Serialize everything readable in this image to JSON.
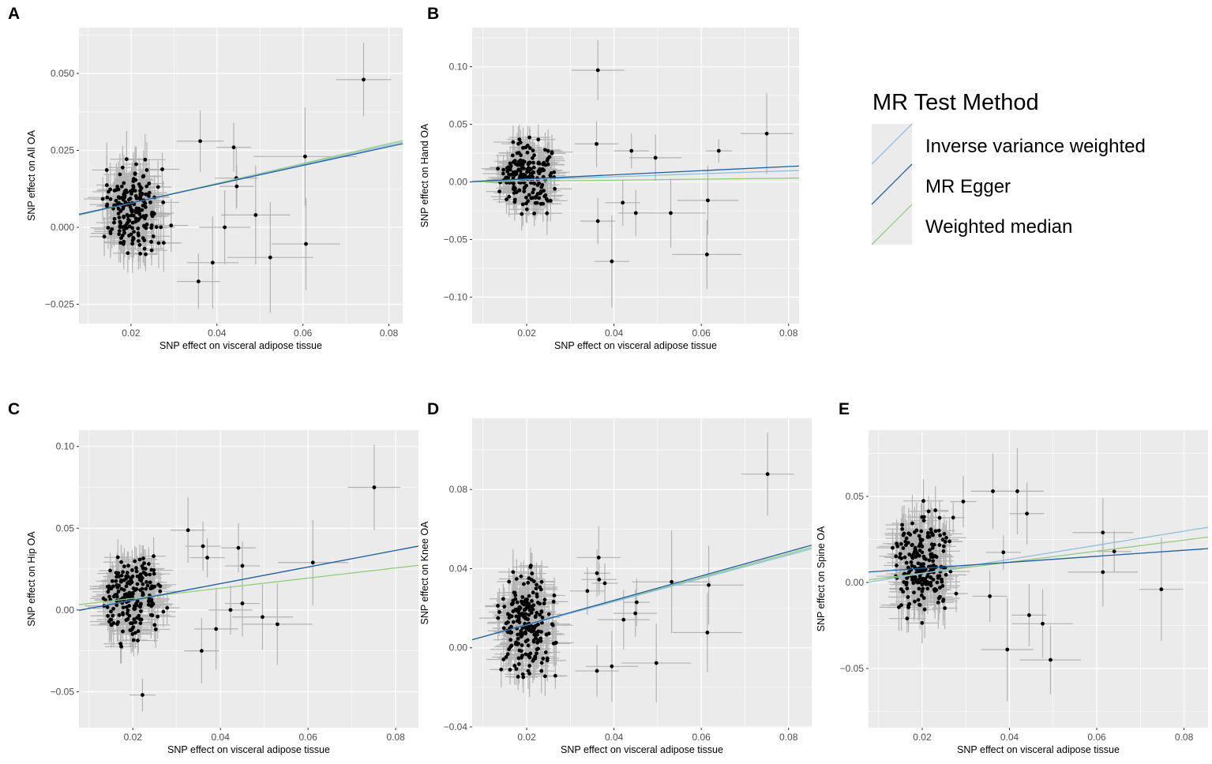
{
  "colors": {
    "panel_bg": "#ebebeb",
    "grid": "#ffffff",
    "errorbar": "#b3b3b3",
    "point": "#000000",
    "ivw": "#8fbfdf",
    "egger": "#1f5f9f",
    "wm": "#93cc7f"
  },
  "legend": {
    "title": "MR Test Method",
    "items": [
      {
        "key": "ivw",
        "label": "Inverse variance weighted"
      },
      {
        "key": "egger",
        "label": "MR Egger"
      },
      {
        "key": "wm",
        "label": "Weighted median"
      }
    ]
  },
  "chart_data": [
    {
      "panel": "A",
      "type": "scatter",
      "xlabel": "SNP effect on visceral adipose tissue",
      "ylabel": "SNP effect on All OA",
      "xlim": [
        0.0079,
        0.0832
      ],
      "ylim": [
        -0.0313,
        0.0649
      ],
      "xticks": [
        {
          "v": 0.02,
          "label": "0.02"
        },
        {
          "v": 0.04,
          "label": "0.04"
        },
        {
          "v": 0.06,
          "label": "0.06"
        },
        {
          "v": 0.08,
          "label": "0.08"
        }
      ],
      "yticks": [
        {
          "v": 0.05,
          "label": "0.050"
        },
        {
          "v": 0.025,
          "label": "0.025"
        },
        {
          "v": 0,
          "label": "0.000"
        },
        {
          "v": -0.025,
          "label": "−0.025"
        }
      ],
      "lines": {
        "ivw": [
          0.0016,
          0.313
        ],
        "egger": [
          0.0018,
          0.305
        ],
        "wm": [
          0.0014,
          0.322
        ]
      },
      "cluster": {
        "n": 200,
        "x": [
          0.013,
          0.03
        ],
        "y_center": 0.006,
        "y_range": [
          -0.014,
          0.024
        ],
        "xerr": 0.004,
        "yerr": 0.008
      },
      "outliers": [
        [
          0.0741,
          0.048,
          0.0064,
          0.012
        ],
        [
          0.0361,
          0.028,
          0.0055,
          0.01
        ],
        [
          0.0439,
          0.026,
          0.004,
          0.008
        ],
        [
          0.0605,
          0.023,
          0.012,
          0.016
        ],
        [
          0.0445,
          0.016,
          0.005,
          0.01
        ],
        [
          0.0446,
          0.0133,
          0.004,
          0.007
        ],
        [
          0.049,
          0.004,
          0.008,
          0.016
        ],
        [
          0.0418,
          0.0,
          0.006,
          0.012
        ],
        [
          0.0607,
          -0.0054,
          0.008,
          0.015
        ],
        [
          0.0524,
          -0.0098,
          0.01,
          0.018
        ],
        [
          0.039,
          -0.0115,
          0.006,
          0.015
        ],
        [
          0.0357,
          -0.0176,
          0.005,
          0.009
        ]
      ]
    },
    {
      "panel": "B",
      "type": "scatter",
      "xlabel": "SNP effect on visceral adipose tissue",
      "ylabel": "SNP effect on Hand OA",
      "xlim": [
        0.0075,
        0.0824
      ],
      "ylim": [
        -0.123,
        0.134
      ],
      "xticks": [
        {
          "v": 0.02,
          "label": "0.02"
        },
        {
          "v": 0.04,
          "label": "0.04"
        },
        {
          "v": 0.06,
          "label": "0.06"
        },
        {
          "v": 0.08,
          "label": "0.08"
        }
      ],
      "yticks": [
        {
          "v": 0.1,
          "label": "0.10"
        },
        {
          "v": 0.05,
          "label": "0.05"
        },
        {
          "v": 0,
          "label": "0.00"
        },
        {
          "v": -0.05,
          "label": "−0.05"
        },
        {
          "v": -0.1,
          "label": "−0.10"
        }
      ],
      "lines": {
        "ivw": [
          -0.0007,
          0.13
        ],
        "egger": [
          -0.001,
          0.18
        ],
        "wm": [
          -0.0003,
          0.045
        ]
      },
      "cluster": {
        "n": 200,
        "x": [
          0.013,
          0.029
        ],
        "y_center": 0.004,
        "y_range": [
          -0.037,
          0.047
        ],
        "xerr": 0.004,
        "yerr": 0.016
      },
      "outliers": [
        [
          0.0363,
          0.097,
          0.006,
          0.026
        ],
        [
          0.036,
          0.033,
          0.005,
          0.02
        ],
        [
          0.044,
          0.027,
          0.004,
          0.015
        ],
        [
          0.0495,
          0.021,
          0.006,
          0.02
        ],
        [
          0.064,
          0.027,
          0.003,
          0.01
        ],
        [
          0.075,
          0.042,
          0.006,
          0.035
        ],
        [
          0.0395,
          -0.069,
          0.004,
          0.04
        ],
        [
          0.042,
          -0.018,
          0.004,
          0.02
        ],
        [
          0.045,
          -0.027,
          0.004,
          0.02
        ],
        [
          0.053,
          -0.027,
          0.008,
          0.03
        ],
        [
          0.0615,
          -0.016,
          0.007,
          0.03
        ],
        [
          0.0613,
          -0.063,
          0.008,
          0.03
        ],
        [
          0.0363,
          -0.034,
          0.004,
          0.02
        ]
      ]
    },
    {
      "panel": "C",
      "type": "scatter",
      "xlabel": "SNP effect on visceral adipose tissue",
      "ylabel": "SNP effect on Hip OA",
      "xlim": [
        0.0077,
        0.0852
      ],
      "ylim": [
        -0.072,
        0.11
      ],
      "xticks": [
        {
          "v": 0.02,
          "label": "0.02"
        },
        {
          "v": 0.04,
          "label": "0.04"
        },
        {
          "v": 0.06,
          "label": "0.06"
        },
        {
          "v": 0.08,
          "label": "0.08"
        }
      ],
      "yticks": [
        {
          "v": 0.1,
          "label": "0.10"
        },
        {
          "v": 0.05,
          "label": "0.05"
        },
        {
          "v": 0,
          "label": "0.00"
        },
        {
          "v": -0.05,
          "label": "−0.05"
        }
      ],
      "lines": {
        "ivw": [
          -0.004,
          0.505
        ],
        "egger": [
          -0.0042,
          0.508
        ],
        "wm": [
          0.0009,
          0.31
        ]
      },
      "cluster": {
        "n": 200,
        "x": [
          0.013,
          0.029
        ],
        "y_center": 0.008,
        "y_range": [
          -0.025,
          0.042
        ],
        "xerr": 0.004,
        "yerr": 0.012
      },
      "outliers": [
        [
          0.0751,
          0.075,
          0.006,
          0.026
        ],
        [
          0.0326,
          0.0488,
          0.004,
          0.02
        ],
        [
          0.036,
          0.039,
          0.004,
          0.015
        ],
        [
          0.0441,
          0.038,
          0.004,
          0.015
        ],
        [
          0.045,
          0.027,
          0.004,
          0.015
        ],
        [
          0.037,
          0.032,
          0.004,
          0.012
        ],
        [
          0.0611,
          0.029,
          0.008,
          0.026
        ],
        [
          0.0222,
          -0.052,
          0.003,
          0.01
        ],
        [
          0.039,
          -0.0116,
          0.005,
          0.025
        ],
        [
          0.0357,
          -0.025,
          0.004,
          0.02
        ],
        [
          0.0423,
          0.0,
          0.005,
          0.015
        ],
        [
          0.045,
          0.004,
          0.004,
          0.02
        ],
        [
          0.0496,
          -0.0043,
          0.007,
          0.02
        ],
        [
          0.053,
          -0.0087,
          0.008,
          0.025
        ]
      ]
    },
    {
      "panel": "D",
      "type": "scatter",
      "xlabel": "SNP effect on visceral adipose tissue",
      "ylabel": "SNP effect on Knee OA",
      "xlim": [
        0.0075,
        0.0853
      ],
      "ylim": [
        -0.0404,
        0.116
      ],
      "xticks": [
        {
          "v": 0.02,
          "label": "0.02"
        },
        {
          "v": 0.04,
          "label": "0.04"
        },
        {
          "v": 0.06,
          "label": "0.06"
        },
        {
          "v": 0.08,
          "label": "0.08"
        }
      ],
      "yticks": [
        {
          "v": 0.08,
          "label": "0.08"
        },
        {
          "v": 0.04,
          "label": "0.04"
        },
        {
          "v": 0,
          "label": "0.00"
        },
        {
          "v": -0.04,
          "label": "−0.04"
        }
      ],
      "lines": {
        "ivw": [
          -0.0003,
          0.59
        ],
        "egger": [
          -0.0006,
          0.615
        ],
        "wm": [
          -0.0004,
          0.6
        ]
      },
      "cluster": {
        "n": 220,
        "x": [
          0.013,
          0.029
        ],
        "y_center": 0.012,
        "y_range": [
          -0.015,
          0.048
        ],
        "xerr": 0.004,
        "yerr": 0.01
      },
      "outliers": [
        [
          0.0752,
          0.0878,
          0.006,
          0.021
        ],
        [
          0.0365,
          0.0456,
          0.005,
          0.016
        ],
        [
          0.0361,
          0.0377,
          0.003,
          0.012
        ],
        [
          0.0366,
          0.0345,
          0.004,
          0.008
        ],
        [
          0.0379,
          0.0326,
          0.003,
          0.01
        ],
        [
          0.0339,
          0.0287,
          0.004,
          0.012
        ],
        [
          0.0532,
          0.0333,
          0.009,
          0.026
        ],
        [
          0.0617,
          0.0317,
          0.008,
          0.02
        ],
        [
          0.0614,
          0.0077,
          0.008,
          0.02
        ],
        [
          0.0452,
          0.023,
          0.003,
          0.012
        ],
        [
          0.0449,
          0.0174,
          0.005,
          0.012
        ],
        [
          0.0422,
          0.0142,
          0.006,
          0.015
        ],
        [
          0.0395,
          -0.0094,
          0.006,
          0.018
        ],
        [
          0.0361,
          -0.0117,
          0.005,
          0.013
        ],
        [
          0.0497,
          -0.0077,
          0.008,
          0.02
        ]
      ]
    },
    {
      "panel": "E",
      "type": "scatter",
      "xlabel": "SNP effect on visceral adipose tissue",
      "ylabel": "SNP effect on Spine OA",
      "xlim": [
        0.0077,
        0.0855
      ],
      "ylim": [
        -0.0844,
        0.0885
      ],
      "xticks": [
        {
          "v": 0.02,
          "label": "0.02"
        },
        {
          "v": 0.04,
          "label": "0.04"
        },
        {
          "v": 0.06,
          "label": "0.06"
        },
        {
          "v": 0.08,
          "label": "0.08"
        }
      ],
      "yticks": [
        {
          "v": 0.05,
          "label": "0.05"
        },
        {
          "v": 0,
          "label": "0.00"
        },
        {
          "v": -0.05,
          "label": "−0.05"
        }
      ],
      "lines": {
        "ivw": [
          -0.003,
          0.41
        ],
        "egger": [
          0.0047,
          0.175
        ],
        "wm": [
          -0.001,
          0.32
        ]
      },
      "cluster": {
        "n": 220,
        "x": [
          0.013,
          0.029
        ],
        "y_center": 0.01,
        "y_range": [
          -0.028,
          0.052
        ],
        "xerr": 0.004,
        "yerr": 0.014
      },
      "outliers": [
        [
          0.0362,
          0.053,
          0.005,
          0.022
        ],
        [
          0.0418,
          0.053,
          0.006,
          0.025
        ],
        [
          0.044,
          0.04,
          0.004,
          0.018
        ],
        [
          0.0294,
          0.047,
          0.003,
          0.015
        ],
        [
          0.0614,
          0.029,
          0.007,
          0.02
        ],
        [
          0.064,
          0.018,
          0.004,
          0.012
        ],
        [
          0.0614,
          0.006,
          0.008,
          0.02
        ],
        [
          0.0748,
          -0.004,
          0.005,
          0.03
        ],
        [
          0.0355,
          -0.008,
          0.004,
          0.015
        ],
        [
          0.0395,
          -0.039,
          0.006,
          0.03
        ],
        [
          0.0445,
          -0.019,
          0.004,
          0.018
        ],
        [
          0.0476,
          -0.024,
          0.007,
          0.02
        ],
        [
          0.0494,
          -0.045,
          0.007,
          0.02
        ],
        [
          0.0386,
          0.0175,
          0.004,
          0.01
        ]
      ]
    }
  ]
}
